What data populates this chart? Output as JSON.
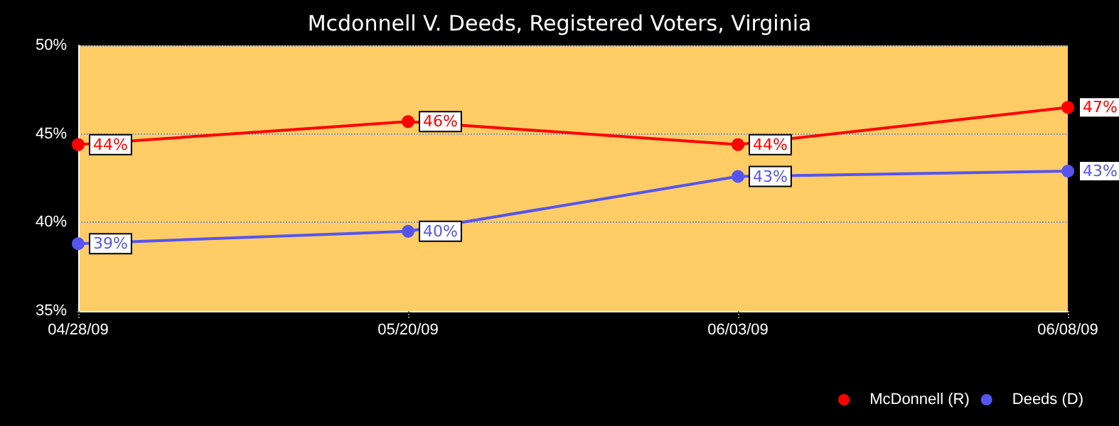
{
  "chart_data": {
    "type": "line",
    "title": "Mcdonnell V. Deeds, Registered Voters, Virginia",
    "categories": [
      "04/28/09",
      "05/20/09",
      "06/03/09",
      "06/08/09"
    ],
    "series": [
      {
        "name": "McDonnell (R)",
        "color": "#ff0000",
        "values": [
          44.4,
          45.7,
          44.4,
          46.5
        ],
        "value_labels": [
          "44%",
          "46%",
          "44%",
          "47%"
        ]
      },
      {
        "name": "Deeds (D)",
        "color": "#5555ee",
        "values": [
          38.8,
          39.5,
          42.6,
          42.9
        ],
        "value_labels": [
          "39%",
          "40%",
          "43%",
          "43%"
        ]
      }
    ],
    "ylim": [
      35,
      50
    ],
    "yticks": [
      {
        "value": 35,
        "label": "35%"
      },
      {
        "value": 40,
        "label": "40%"
      },
      {
        "value": 45,
        "label": "45%"
      },
      {
        "value": 50,
        "label": "50%"
      }
    ],
    "grid": "y",
    "legend": "bottom right",
    "marker": "circle",
    "line_style": "solid"
  }
}
